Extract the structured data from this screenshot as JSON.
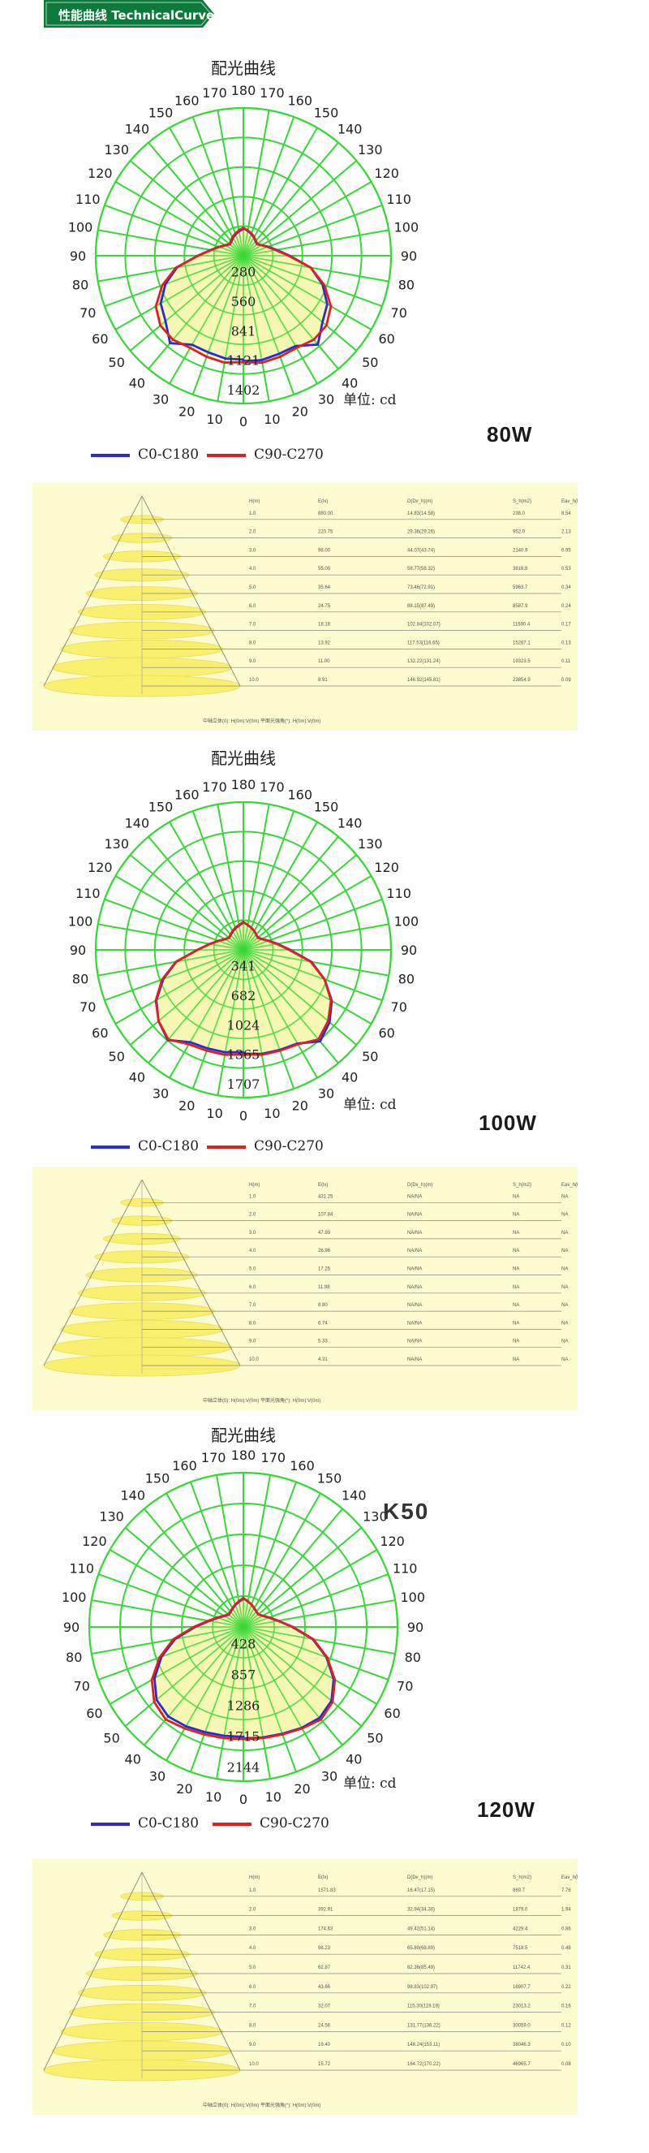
{
  "header": {
    "title": "性能曲线 TechnicalCurves",
    "color": "#0d7a3c"
  },
  "chart_data": [
    {
      "type": "polar",
      "title": "配光曲线",
      "unit": "单位: cd",
      "wattage": "80W",
      "angle_labels": [
        "0",
        "10",
        "20",
        "30",
        "40",
        "50",
        "60",
        "70",
        "80",
        "90",
        "100",
        "110",
        "120",
        "130",
        "140",
        "150",
        "160",
        "170",
        "180"
      ],
      "radial_labels": [
        "280",
        "560",
        "841",
        "1121",
        "1402"
      ],
      "radial_max": 1402,
      "series": [
        {
          "name": "C0-C180",
          "color": "#2a2ad8",
          "angles": [
            0,
            10,
            20,
            30,
            40,
            50,
            60,
            70,
            80,
            90,
            100,
            110,
            120,
            130,
            140,
            150,
            160,
            170,
            180
          ],
          "values": [
            1000,
            1005,
            990,
            990,
            1100,
            980,
            920,
            800,
            650,
            440,
            320,
            250,
            200,
            170,
            180,
            200,
            220,
            240,
            260
          ]
        },
        {
          "name": "C90-C270",
          "color": "#e02020",
          "angles": [
            0,
            10,
            20,
            30,
            40,
            50,
            60,
            70,
            80,
            90,
            100,
            110,
            120,
            130,
            140,
            150,
            160,
            170,
            180
          ],
          "values": [
            1010,
            1030,
            1020,
            1010,
            1040,
            1030,
            960,
            820,
            650,
            430,
            310,
            245,
            200,
            172,
            185,
            205,
            225,
            245,
            265
          ]
        }
      ]
    },
    {
      "type": "polar",
      "title": "配光曲线",
      "unit": "单位: cd",
      "wattage": "100W",
      "angle_labels": [
        "0",
        "10",
        "20",
        "30",
        "40",
        "50",
        "60",
        "70",
        "80",
        "90",
        "100",
        "110",
        "120",
        "130",
        "140",
        "150",
        "160",
        "170",
        "180"
      ],
      "radial_labels": [
        "341",
        "682",
        "1024",
        "1365",
        "1707"
      ],
      "radial_max": 1707,
      "series": [
        {
          "name": "C0-C180",
          "color": "#2a2ad8",
          "angles": [
            0,
            10,
            20,
            30,
            40,
            50,
            60,
            70,
            80,
            90,
            100,
            110,
            120,
            130,
            140,
            150,
            160,
            170,
            180
          ],
          "values": [
            1200,
            1220,
            1230,
            1250,
            1380,
            1300,
            1180,
            1000,
            800,
            540,
            400,
            310,
            250,
            220,
            230,
            250,
            270,
            290,
            320
          ]
        },
        {
          "name": "C90-C270",
          "color": "#e02020",
          "angles": [
            0,
            10,
            20,
            30,
            40,
            50,
            60,
            70,
            80,
            90,
            100,
            110,
            120,
            130,
            140,
            150,
            160,
            170,
            180
          ],
          "values": [
            1210,
            1230,
            1240,
            1260,
            1350,
            1280,
            1170,
            1000,
            790,
            530,
            395,
            305,
            248,
            218,
            232,
            252,
            272,
            292,
            322
          ]
        }
      ]
    },
    {
      "type": "polar",
      "title": "配光曲线",
      "unit": "单位: cd",
      "wattage": "120W",
      "angle_labels": [
        "0",
        "10",
        "20",
        "30",
        "40",
        "50",
        "60",
        "70",
        "80",
        "90",
        "100",
        "110",
        "120",
        "130",
        "140",
        "150",
        "160",
        "170",
        "180"
      ],
      "radial_labels": [
        "428",
        "857",
        "1286",
        "1715",
        "2144"
      ],
      "radial_max": 2144,
      "series": [
        {
          "name": "C0-C180",
          "color": "#2a2ad8",
          "angles": [
            0,
            10,
            20,
            30,
            40,
            50,
            60,
            70,
            80,
            90,
            100,
            110,
            120,
            130,
            140,
            150,
            160,
            170,
            180
          ],
          "values": [
            1550,
            1560,
            1580,
            1620,
            1650,
            1600,
            1450,
            1230,
            980,
            680,
            490,
            380,
            310,
            270,
            280,
            300,
            330,
            360,
            400
          ]
        },
        {
          "name": "C90-C270",
          "color": "#e02020",
          "angles": [
            0,
            10,
            20,
            30,
            40,
            50,
            60,
            70,
            80,
            90,
            100,
            110,
            120,
            130,
            140,
            150,
            160,
            170,
            180
          ],
          "values": [
            1560,
            1570,
            1590,
            1630,
            1680,
            1620,
            1470,
            1240,
            990,
            690,
            495,
            385,
            312,
            272,
            282,
            302,
            332,
            362,
            402
          ]
        }
      ]
    },
    {
      "type": "table",
      "title": "",
      "columns": [
        "H(m)",
        "E(lx)",
        "D(Dv_h)(m)",
        "S_h(m2)",
        "Eav_h(lx)"
      ],
      "rows": [
        [
          "1.0",
          "880.00",
          "14.83(14.58)",
          "238.0",
          "8.54"
        ],
        [
          "2.0",
          "220.75",
          "29.36(29.26)",
          "952.0",
          "2.13"
        ],
        [
          "3.0",
          "98.00",
          "44.07(43.74)",
          "2140.9",
          "0.95"
        ],
        [
          "4.0",
          "55.00",
          "58.77(58.32)",
          "3816.8",
          "0.53"
        ],
        [
          "5.0",
          "35.64",
          "73.46(72.91)",
          "5963.7",
          "0.34"
        ],
        [
          "6.0",
          "24.75",
          "88.15(87.49)",
          "8587.9",
          "0.24"
        ],
        [
          "7.0",
          "18.18",
          "102.84(102.07)",
          "11690.4",
          "0.17"
        ],
        [
          "8.0",
          "13.92",
          "117.53(116.65)",
          "15267.1",
          "0.13"
        ],
        [
          "9.0",
          "11.00",
          "132.22(131.24)",
          "19323.5",
          "0.11"
        ],
        [
          "10.0",
          "8.91",
          "146.92(145.81)",
          "23854.9",
          "0.09"
        ]
      ],
      "footer": "中轴立体(0): H(0m):V(0m)  平面光强角(°): H(0m):V(0m)"
    },
    {
      "type": "table",
      "title": "",
      "columns": [
        "H(m)",
        "E(lx)",
        "D(Dv_h)(m)",
        "S_h(m2)",
        "Eav_h(lx)"
      ],
      "rows": [
        [
          "1.0",
          "431.25",
          "NA/NA",
          "NA",
          "NA"
        ],
        [
          "2.0",
          "107.84",
          "NA/NA",
          "NA",
          "NA"
        ],
        [
          "3.0",
          "47.93",
          "NA/NA",
          "NA",
          "NA"
        ],
        [
          "4.0",
          "26.96",
          "NA/NA",
          "NA",
          "NA"
        ],
        [
          "5.0",
          "17.25",
          "NA/NA",
          "NA",
          "NA"
        ],
        [
          "6.0",
          "11.98",
          "NA/NA",
          "NA",
          "NA"
        ],
        [
          "7.0",
          "8.80",
          "NA/NA",
          "NA",
          "NA"
        ],
        [
          "8.0",
          "6.74",
          "NA/NA",
          "NA",
          "NA"
        ],
        [
          "9.0",
          "5.33",
          "NA/NA",
          "NA",
          "NA"
        ],
        [
          "10.0",
          "4.31",
          "NA/NA",
          "NA",
          "NA"
        ]
      ],
      "footer": "中轴立体(0): H(0m):V(0m)  平面光强角(°): H(0m):V(0m)"
    },
    {
      "type": "table",
      "title": "",
      "columns": [
        "H(m)",
        "E(lx)",
        "D(Dv_h)(m)",
        "S_h(m2)",
        "Eav_h(lx)"
      ],
      "rows": [
        [
          "1.0",
          "1571.83",
          "16.47(17.15)",
          "869.7",
          "7.76"
        ],
        [
          "2.0",
          "392.91",
          "32.94(34.30)",
          "1879.0",
          "1.94"
        ],
        [
          "3.0",
          "174.63",
          "49.42(51.14)",
          "4229.4",
          "0.86"
        ],
        [
          "4.0",
          "98.23",
          "65.89(68.89)",
          "7518.5",
          "0.48"
        ],
        [
          "5.0",
          "62.87",
          "82.36(85.49)",
          "11742.4",
          "0.31"
        ],
        [
          "6.0",
          "43.66",
          "98.83(102.87)",
          "16907.7",
          "0.22"
        ],
        [
          "7.0",
          "32.07",
          "115.30(119.19)",
          "23013.2",
          "0.16"
        ],
        [
          "8.0",
          "24.56",
          "131.77(136.22)",
          "30059.0",
          "0.12"
        ],
        [
          "9.0",
          "19.40",
          "148.24(153.11)",
          "38046.3",
          "0.10"
        ],
        [
          "10.0",
          "15.72",
          "164.72(170.22)",
          "46965.7",
          "0.08"
        ]
      ],
      "footer": "中轴立体(0): H(0m):V(0m)  平面光强角(°): H(0m):V(0m)"
    }
  ]
}
